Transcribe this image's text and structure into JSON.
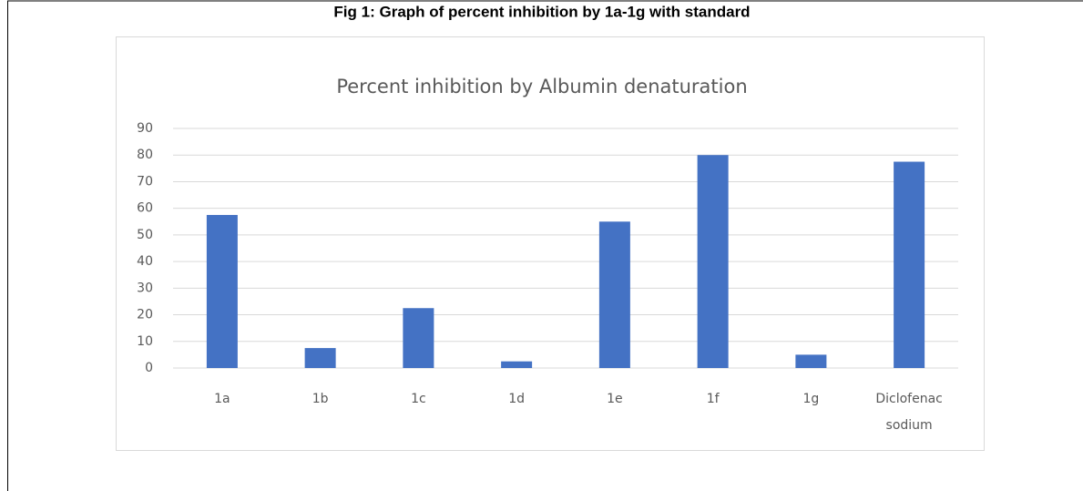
{
  "caption": "Fig 1: Graph of percent inhibition by 1a-1g with standard",
  "chart_data": {
    "type": "bar",
    "title": "Percent inhibition by Albumin denaturation",
    "categories": [
      "1a",
      "1b",
      "1c",
      "1d",
      "1e",
      "1f",
      "1g",
      "Diclofenac sodium"
    ],
    "values": [
      57.5,
      7.5,
      22.5,
      2.5,
      55,
      80,
      5,
      77.5
    ],
    "color": "#4472c4",
    "ylim": [
      0,
      90
    ],
    "yticks": [
      0,
      10,
      20,
      30,
      40,
      50,
      60,
      70,
      80,
      90
    ],
    "grid": true
  }
}
